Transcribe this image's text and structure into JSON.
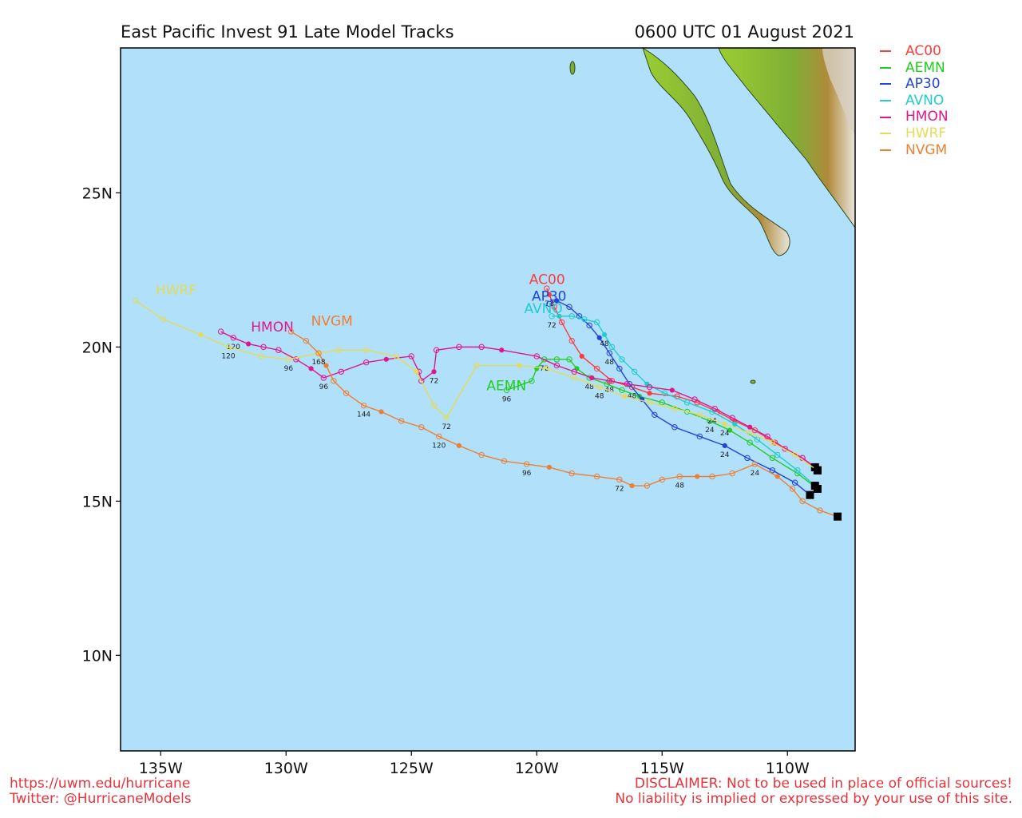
{
  "title": "East Pacific Invest 91 Late Model Tracks",
  "timestamp": "0600 UTC 01 August 2021",
  "footer": {
    "url": "https://uwm.edu/hurricane",
    "twitter": "Twitter: @HurricaneModels",
    "disclaimer_1": "DISCLAIMER: Not to be used in place of official sources!",
    "disclaimer_2": "No liability is implied or expressed by your use of this site."
  },
  "colors": {
    "ocean": "#b0e0fa",
    "land_low": "#9acd32",
    "land_high": "#6b4a1e",
    "frame": "#000000",
    "footer_text": "#e8323a"
  },
  "legend": [
    {
      "name": "AC00",
      "color": "#ff3b3b"
    },
    {
      "name": "AEMN",
      "color": "#22cc22"
    },
    {
      "name": "AP30",
      "color": "#2244dd"
    },
    {
      "name": "AVNO",
      "color": "#22cccc"
    },
    {
      "name": "HMON",
      "color": "#e0178c"
    },
    {
      "name": "HWRF",
      "color": "#e3dc5a"
    },
    {
      "name": "NVGM",
      "color": "#ee7f33"
    }
  ],
  "chart_data": {
    "type": "scatter",
    "xlim": [
      -136.6,
      -107.3
    ],
    "ylim": [
      6.9,
      29.7
    ],
    "x_ticks": [
      {
        "value": -135,
        "label": "135W"
      },
      {
        "value": -130,
        "label": "130W"
      },
      {
        "value": -125,
        "label": "125W"
      },
      {
        "value": -120,
        "label": "120W"
      },
      {
        "value": -115,
        "label": "115W"
      },
      {
        "value": -110,
        "label": "110W"
      }
    ],
    "y_ticks": [
      {
        "value": 10,
        "label": "10N"
      },
      {
        "value": 15,
        "label": "15N"
      },
      {
        "value": 20,
        "label": "20N"
      },
      {
        "value": 25,
        "label": "25N"
      }
    ],
    "series": [
      {
        "name": "AC00",
        "color": "#ff3b3b",
        "label": {
          "text": "AC00",
          "lon": -120.3,
          "lat": 22.05
        },
        "points": [
          [
            -108.8,
            16.0
          ],
          [
            -109.4,
            16.4
          ],
          [
            -110.5,
            16.9
          ],
          [
            -111.3,
            17.3
          ],
          [
            -112.1,
            17.6
          ],
          [
            -112.8,
            17.9
          ],
          [
            -113.6,
            18.2
          ],
          [
            -114.4,
            18.4
          ],
          [
            -115.5,
            18.5
          ],
          [
            -116.2,
            18.7
          ],
          [
            -117.0,
            18.9
          ],
          [
            -117.6,
            19.3
          ],
          [
            -118.2,
            19.7
          ],
          [
            -118.6,
            20.2
          ],
          [
            -119.0,
            20.8
          ],
          [
            -119.3,
            21.3
          ],
          [
            -119.5,
            21.7
          ],
          [
            -119.6,
            21.9
          ]
        ],
        "hour_labels": [
          {
            "i": 9,
            "text": "48"
          },
          {
            "i": 16,
            "text": "72"
          }
        ]
      },
      {
        "name": "AEMN",
        "color": "#22cc22",
        "label": {
          "text": "AEMN",
          "lon": -122.0,
          "lat": 18.6
        },
        "points": [
          [
            -108.8,
            15.4
          ],
          [
            -109.6,
            15.9
          ],
          [
            -110.6,
            16.4
          ],
          [
            -111.5,
            16.9
          ],
          [
            -112.3,
            17.3
          ],
          [
            -113.1,
            17.6
          ],
          [
            -114.0,
            17.9
          ],
          [
            -115.0,
            18.2
          ],
          [
            -115.9,
            18.4
          ],
          [
            -116.6,
            18.6
          ],
          [
            -117.2,
            18.8
          ],
          [
            -117.9,
            19.0
          ],
          [
            -118.4,
            19.3
          ],
          [
            -118.7,
            19.6
          ],
          [
            -119.2,
            19.6
          ],
          [
            -119.7,
            19.6
          ],
          [
            -120.0,
            19.3
          ],
          [
            -120.2,
            18.9
          ],
          [
            -121.2,
            18.6
          ]
        ],
        "hour_labels": [
          {
            "i": 5,
            "text": "24"
          },
          {
            "i": 11,
            "text": "48"
          },
          {
            "i": 15,
            "text": "72"
          },
          {
            "i": 18,
            "text": "96"
          }
        ]
      },
      {
        "name": "AP30",
        "color": "#2244dd",
        "label": {
          "text": "AP30",
          "lon": -120.2,
          "lat": 21.5
        },
        "points": [
          [
            -109.1,
            15.2
          ],
          [
            -109.7,
            15.6
          ],
          [
            -110.6,
            16.0
          ],
          [
            -111.6,
            16.4
          ],
          [
            -112.5,
            16.8
          ],
          [
            -113.5,
            17.1
          ],
          [
            -114.5,
            17.4
          ],
          [
            -115.3,
            17.8
          ],
          [
            -115.8,
            18.3
          ],
          [
            -116.3,
            18.8
          ],
          [
            -116.7,
            19.3
          ],
          [
            -117.1,
            19.8
          ],
          [
            -117.5,
            20.3
          ],
          [
            -117.9,
            20.7
          ],
          [
            -118.3,
            21.0
          ],
          [
            -118.7,
            21.3
          ],
          [
            -119.2,
            21.5
          ],
          [
            -119.5,
            21.4
          ]
        ],
        "hour_labels": [
          {
            "i": 4,
            "text": "24"
          },
          {
            "i": 11,
            "text": "48"
          }
        ]
      },
      {
        "name": "AVNO",
        "color": "#22cccc",
        "label": {
          "text": "AVNO",
          "lon": -120.5,
          "lat": 21.1
        },
        "points": [
          [
            -108.9,
            15.5
          ],
          [
            -109.6,
            16.0
          ],
          [
            -110.4,
            16.5
          ],
          [
            -111.2,
            17.0
          ],
          [
            -112.1,
            17.5
          ],
          [
            -113.0,
            17.9
          ],
          [
            -114.0,
            18.2
          ],
          [
            -114.9,
            18.5
          ],
          [
            -115.6,
            18.8
          ],
          [
            -116.1,
            19.2
          ],
          [
            -116.6,
            19.6
          ],
          [
            -117.0,
            20.0
          ],
          [
            -117.3,
            20.4
          ],
          [
            -117.6,
            20.8
          ],
          [
            -118.1,
            20.9
          ],
          [
            -118.6,
            21.0
          ],
          [
            -119.1,
            21.0
          ],
          [
            -119.4,
            21.0
          ]
        ],
        "hour_labels": [
          {
            "i": 5,
            "text": "24"
          },
          {
            "i": 12,
            "text": "48"
          },
          {
            "i": 17,
            "text": "72"
          }
        ]
      },
      {
        "name": "HMON",
        "color": "#e0178c",
        "label": {
          "text": "HMON",
          "lon": -131.4,
          "lat": 20.5
        },
        "points": [
          [
            -108.9,
            16.1
          ],
          [
            -109.4,
            16.4
          ],
          [
            -110.1,
            16.7
          ],
          [
            -110.8,
            17.1
          ],
          [
            -111.5,
            17.4
          ],
          [
            -112.2,
            17.7
          ],
          [
            -112.9,
            18.0
          ],
          [
            -113.7,
            18.3
          ],
          [
            -114.6,
            18.6
          ],
          [
            -115.5,
            18.7
          ],
          [
            -116.4,
            18.8
          ],
          [
            -117.1,
            18.9
          ],
          [
            -117.8,
            19.0
          ],
          [
            -118.5,
            19.2
          ],
          [
            -119.2,
            19.4
          ],
          [
            -120.0,
            19.7
          ],
          [
            -121.4,
            19.9
          ],
          [
            -122.2,
            20.0
          ],
          [
            -123.1,
            20.0
          ],
          [
            -124.0,
            19.9
          ],
          [
            -124.1,
            19.2
          ],
          [
            -124.6,
            18.9
          ],
          [
            -124.7,
            19.2
          ],
          [
            -125.0,
            19.7
          ],
          [
            -126.0,
            19.6
          ],
          [
            -126.8,
            19.5
          ],
          [
            -127.8,
            19.2
          ],
          [
            -128.5,
            19.0
          ],
          [
            -129.0,
            19.3
          ],
          [
            -129.6,
            19.6
          ],
          [
            -130.3,
            19.9
          ],
          [
            -130.9,
            20.0
          ],
          [
            -131.5,
            20.1
          ],
          [
            -132.1,
            20.3
          ],
          [
            -132.6,
            20.5
          ]
        ],
        "hour_labels": [
          {
            "i": 11,
            "text": "48"
          },
          {
            "i": 20,
            "text": "72"
          },
          {
            "i": 27,
            "text": "96"
          },
          {
            "i": 33,
            "text": "120"
          }
        ]
      },
      {
        "name": "HWRF",
        "color": "#e3dc5a",
        "label": {
          "text": "HWRF",
          "lon": -135.2,
          "lat": 21.7
        },
        "points": [
          [
            -108.8,
            16.0
          ],
          [
            -109.7,
            16.5
          ],
          [
            -110.6,
            16.9
          ],
          [
            -111.5,
            17.2
          ],
          [
            -112.5,
            17.5
          ],
          [
            -113.5,
            17.8
          ],
          [
            -114.5,
            18.0
          ],
          [
            -115.5,
            18.2
          ],
          [
            -116.5,
            18.4
          ],
          [
            -117.5,
            18.7
          ],
          [
            -118.5,
            19.0
          ],
          [
            -119.6,
            19.3
          ],
          [
            -120.7,
            19.4
          ],
          [
            -122.4,
            19.4
          ],
          [
            -123.6,
            17.7
          ],
          [
            -124.1,
            18.1
          ],
          [
            -124.8,
            19.2
          ],
          [
            -125.6,
            19.7
          ],
          [
            -126.8,
            19.9
          ],
          [
            -127.9,
            19.9
          ],
          [
            -128.7,
            19.8
          ],
          [
            -129.9,
            19.6
          ],
          [
            -131.0,
            19.7
          ],
          [
            -132.3,
            20.0
          ],
          [
            -133.4,
            20.4
          ],
          [
            -134.9,
            20.9
          ],
          [
            -136.0,
            21.5
          ]
        ],
        "hour_labels": [
          {
            "i": 4,
            "text": "24"
          },
          {
            "i": 9,
            "text": "48"
          },
          {
            "i": 14,
            "text": "72"
          },
          {
            "i": 21,
            "text": "96"
          },
          {
            "i": 23,
            "text": "120"
          }
        ]
      },
      {
        "name": "NVGM",
        "color": "#ee7f33",
        "label": {
          "text": "NVGM",
          "lon": -129.0,
          "lat": 20.7
        },
        "points": [
          [
            -108.0,
            14.5
          ],
          [
            -108.7,
            14.7
          ],
          [
            -109.4,
            15.0
          ],
          [
            -109.8,
            15.4
          ],
          [
            -110.4,
            15.8
          ],
          [
            -111.3,
            16.2
          ],
          [
            -112.2,
            15.9
          ],
          [
            -113.0,
            15.8
          ],
          [
            -113.6,
            15.8
          ],
          [
            -114.3,
            15.8
          ],
          [
            -115.0,
            15.7
          ],
          [
            -115.6,
            15.5
          ],
          [
            -116.2,
            15.5
          ],
          [
            -116.7,
            15.7
          ],
          [
            -117.6,
            15.8
          ],
          [
            -118.6,
            15.9
          ],
          [
            -119.5,
            16.1
          ],
          [
            -120.4,
            16.2
          ],
          [
            -121.3,
            16.3
          ],
          [
            -122.2,
            16.5
          ],
          [
            -123.1,
            16.8
          ],
          [
            -123.9,
            17.1
          ],
          [
            -124.6,
            17.4
          ],
          [
            -125.4,
            17.6
          ],
          [
            -126.2,
            17.9
          ],
          [
            -126.9,
            18.1
          ],
          [
            -127.6,
            18.5
          ],
          [
            -128.1,
            18.9
          ],
          [
            -128.4,
            19.4
          ],
          [
            -128.7,
            19.8
          ],
          [
            -129.2,
            20.2
          ],
          [
            -129.8,
            20.5
          ]
        ],
        "hour_labels": [
          {
            "i": 5,
            "text": "24"
          },
          {
            "i": 9,
            "text": "48"
          },
          {
            "i": 13,
            "text": "72"
          },
          {
            "i": 17,
            "text": "96"
          },
          {
            "i": 21,
            "text": "120"
          },
          {
            "i": 25,
            "text": "144"
          },
          {
            "i": 29,
            "text": "168"
          }
        ]
      }
    ]
  }
}
